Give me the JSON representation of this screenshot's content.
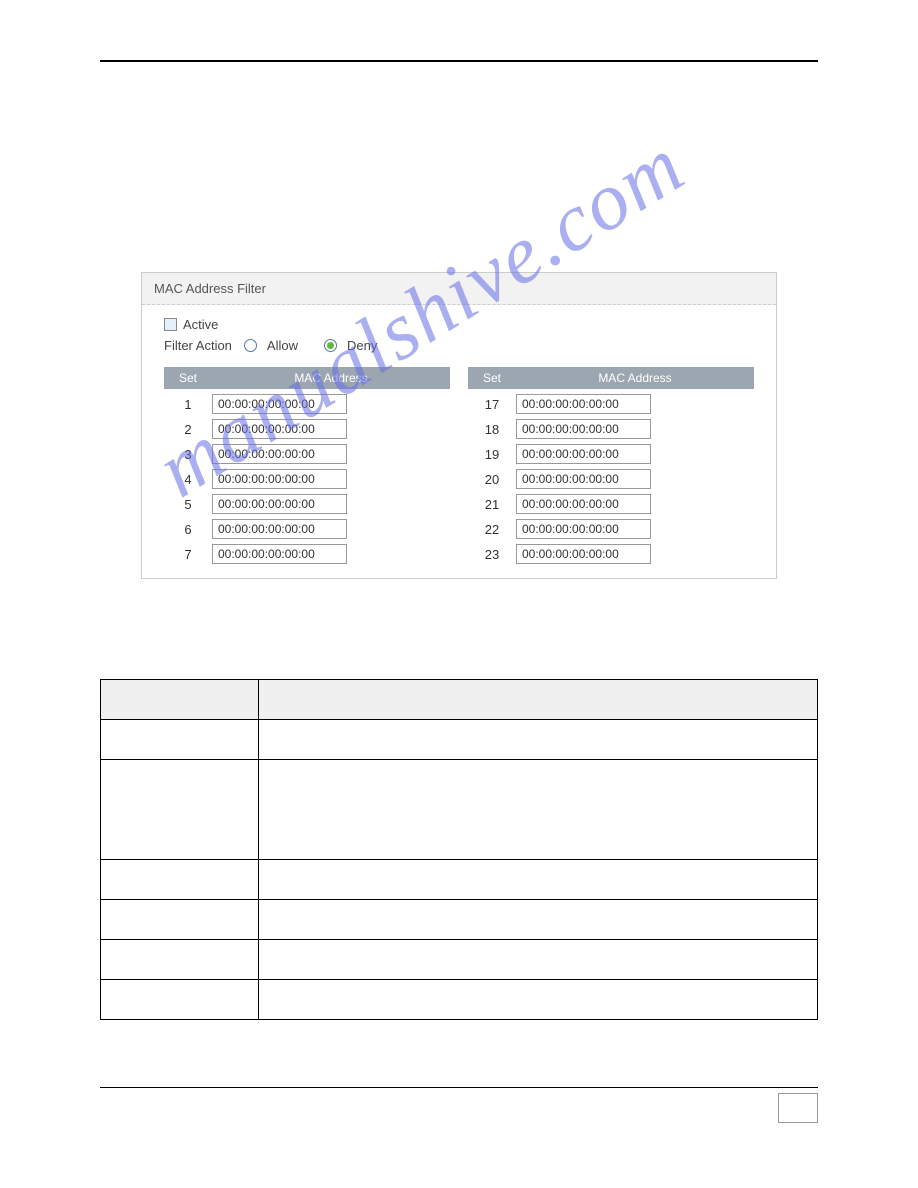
{
  "watermark_text": "manualshive.com",
  "panel": {
    "title": "MAC Address Filter",
    "active_label": "Active",
    "filter_action_label": "Filter Action",
    "allow_label": "Allow",
    "deny_label": "Deny",
    "deny_selected": true,
    "headers": {
      "set": "Set",
      "mac": "MAC Address"
    },
    "left_rows": [
      {
        "set": "1",
        "mac": "00:00:00:00:00:00"
      },
      {
        "set": "2",
        "mac": "00:00:00:00:00:00"
      },
      {
        "set": "3",
        "mac": "00:00:00:00:00:00"
      },
      {
        "set": "4",
        "mac": "00:00:00:00:00:00"
      },
      {
        "set": "5",
        "mac": "00:00:00:00:00:00"
      },
      {
        "set": "6",
        "mac": "00:00:00:00:00:00"
      },
      {
        "set": "7",
        "mac": "00:00:00:00:00:00"
      }
    ],
    "right_rows": [
      {
        "set": "17",
        "mac": "00:00:00:00:00:00"
      },
      {
        "set": "18",
        "mac": "00:00:00:00:00:00"
      },
      {
        "set": "19",
        "mac": "00:00:00:00:00:00"
      },
      {
        "set": "20",
        "mac": "00:00:00:00:00:00"
      },
      {
        "set": "21",
        "mac": "00:00:00:00:00:00"
      },
      {
        "set": "22",
        "mac": "00:00:00:00:00:00"
      },
      {
        "set": "23",
        "mac": "00:00:00:00:00:00"
      }
    ]
  },
  "colors": {
    "header_bg": "#f2f2f2",
    "th_bg": "#9ca6b0",
    "radio_border": "#5a7aa6",
    "radio_dot": "#5dbb3a",
    "watermark": "rgba(100,110,230,0.55)"
  },
  "doc_table": {
    "headers": [
      "",
      ""
    ],
    "rows": 5
  }
}
